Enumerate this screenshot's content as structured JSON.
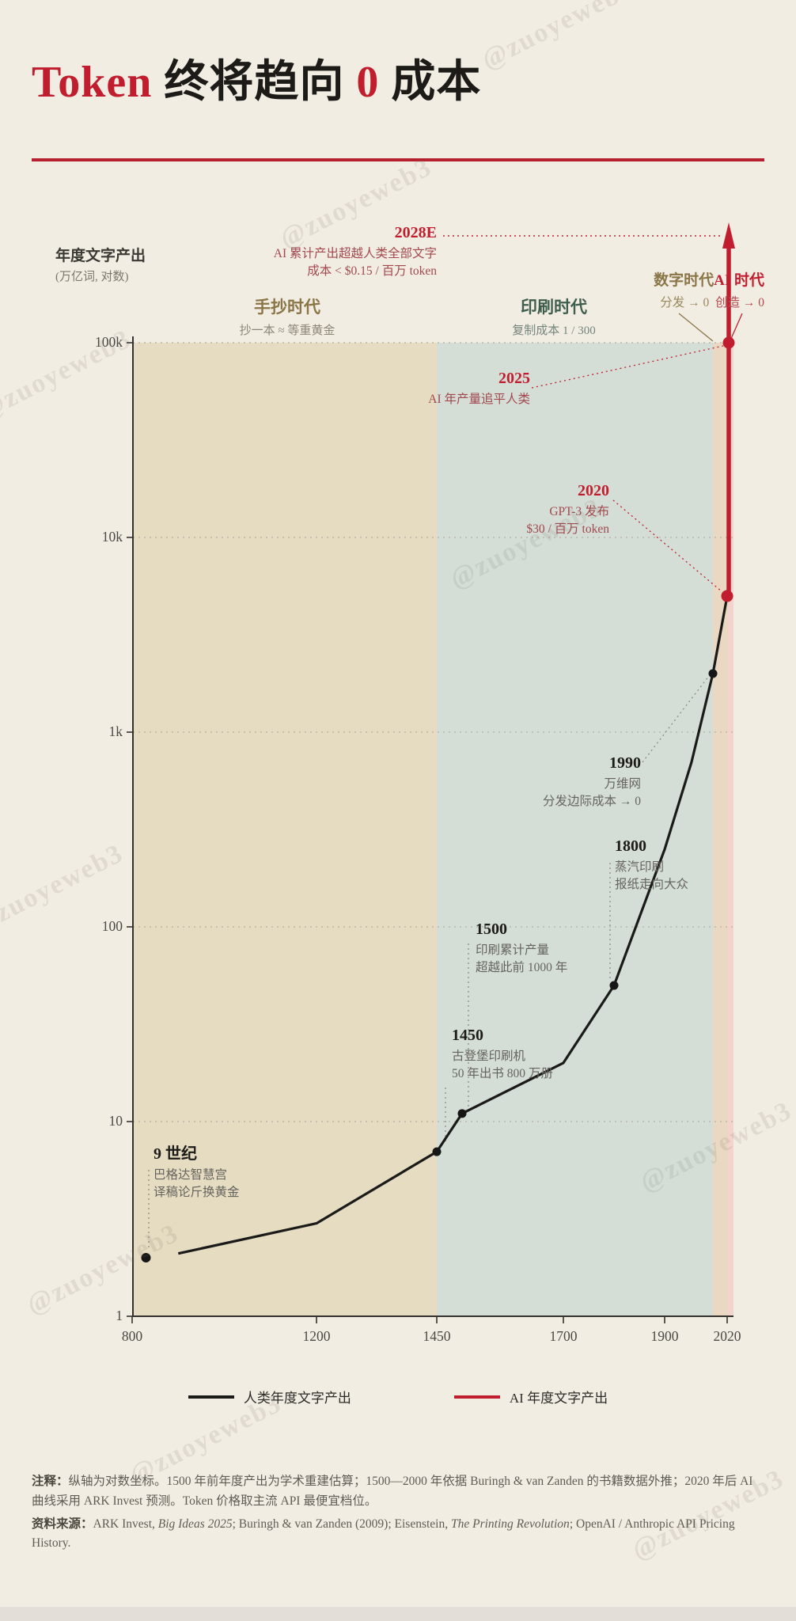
{
  "watermark": {
    "text": "@zuoyeweb3"
  },
  "title": {
    "t1": "Token",
    "t2": " 终将趋向 ",
    "t3": "0",
    "t4": " 成本"
  },
  "axis": {
    "y_title": "年度文字产出",
    "y_unit": "(万亿词, 对数)"
  },
  "eras": {
    "manuscript": {
      "name": "手抄时代",
      "sub": "抄一本 ≈ 等重黄金"
    },
    "print": {
      "name": "印刷时代",
      "sub": "复制成本 1 / 300"
    },
    "digital": {
      "name": "数字时代",
      "sub": "分发 → 0"
    },
    "ai": {
      "name": "AI 时代",
      "sub": "创造 → 0"
    }
  },
  "ann": {
    "a2028": {
      "year": "2028E",
      "line1": "AI 累计产出超越人类全部文字",
      "line2": "成本 < $0.15 / 百万 token"
    },
    "a2025": {
      "year": "2025",
      "line1": "AI 年产量追平人类"
    },
    "a2020": {
      "year": "2020",
      "line1": "GPT-3 发布",
      "line2": "$30 / 百万 token"
    },
    "a1990": {
      "year": "1990",
      "line1": "万维网",
      "line2": "分发边际成本 → 0"
    },
    "a1800": {
      "year": "1800",
      "line1": "蒸汽印刷",
      "line2": "报纸走向大众"
    },
    "a1500": {
      "year": "1500",
      "line1": "印刷累计产量",
      "line2": "超越此前 1000 年"
    },
    "a1450": {
      "year": "1450",
      "line1": "古登堡印刷机",
      "line2": "50 年出书 800 万册"
    },
    "a9c": {
      "year": "9 世纪",
      "line1": "巴格达智慧宫",
      "line2": "译稿论斤换黄金"
    }
  },
  "legend": {
    "human": {
      "label": "人类年度文字产出",
      "color": "#1a1a19"
    },
    "ai": {
      "label": "AI 年度文字产出",
      "color": "#c01e2e"
    }
  },
  "notes": {
    "note_label": "注释：",
    "note_text": "纵轴为对数坐标。1500 年前年度产出为学术重建估算；1500—2000 年依据 Buringh & van Zanden 的书籍数据外推；2020 年后 AI 曲线采用 ARK Invest 预测。Token 价格取主流 API 最便宜档位。",
    "source_label": "资料来源：",
    "source_segments": [
      {
        "text": "ARK Invest, ",
        "italic": false
      },
      {
        "text": "Big Ideas 2025",
        "italic": true
      },
      {
        "text": ";  Buringh & van Zanden (2009);  Eisenstein, ",
        "italic": false
      },
      {
        "text": "The Printing Revolution",
        "italic": true
      },
      {
        "text": ";  OpenAI / Anthropic API Pricing History.",
        "italic": false
      }
    ]
  },
  "colors": {
    "accent_red": "#c01e2e",
    "annotation_red": "#a2484e",
    "olive": "#8a7547",
    "green": "#3f5e4e",
    "band_manuscript": "#e6dcc2",
    "band_print": "#d4ded6",
    "band_digital": "#ead8c2",
    "band_ai": "#f3d3cc",
    "human_line": "#1a1a19",
    "grid": "#b5b0a3",
    "leader_grey": "#8f8c82"
  },
  "chart_data": {
    "type": "line",
    "title": "Token 终将趋向 0 成本",
    "y_axis": {
      "label": "年度文字产出 (万亿词)",
      "scale": "log",
      "ticks": [
        100000,
        10000,
        1000,
        100,
        10,
        1
      ],
      "tick_labels": [
        "100k",
        "10k",
        "1k",
        "100",
        "10",
        "1"
      ],
      "ylim": [
        1,
        100000
      ]
    },
    "x_axis": {
      "ticks": [
        800,
        1200,
        1450,
        1700,
        1900,
        2020
      ],
      "tick_labels": [
        "800",
        "1200",
        "1450",
        "1700",
        "1900",
        "2020"
      ],
      "xlim": [
        800,
        2035
      ]
    },
    "grid": "dotted horizontal per decade",
    "legend_position": "bottom-center",
    "series": [
      {
        "name": "人类年度文字产出",
        "color": "#1a1a19",
        "isolated_point": [
          830,
          2
        ],
        "points": [
          [
            900,
            2.1
          ],
          [
            1200,
            3
          ],
          [
            1450,
            7
          ],
          [
            1500,
            11
          ],
          [
            1700,
            20
          ],
          [
            1800,
            50
          ],
          [
            1900,
            250
          ],
          [
            1950,
            700
          ],
          [
            1990,
            2000
          ],
          [
            2020,
            5000
          ]
        ],
        "dots": [
          [
            1450,
            7
          ],
          [
            1500,
            11
          ],
          [
            1800,
            50
          ],
          [
            1990,
            2000
          ]
        ]
      },
      {
        "name": "AI 年度文字产出",
        "color": "#c01e2e",
        "points": [
          [
            2021,
            5000
          ],
          [
            2025,
            100000
          ]
        ],
        "dots": [
          [
            2021,
            5000
          ],
          [
            2025,
            100000
          ]
        ],
        "projection": "2028E 箭头超出坐标轴顶端"
      }
    ],
    "eras": [
      {
        "name": "手抄时代",
        "from": 800,
        "to": 1450
      },
      {
        "name": "印刷时代",
        "from": 1450,
        "to": 1990
      },
      {
        "name": "数字时代",
        "from": 1990,
        "to": 2022
      },
      {
        "name": "AI 时代",
        "from": 2022,
        "to": 2035
      }
    ],
    "milestones": [
      {
        "year": "9 世纪",
        "value": 2,
        "label": "巴格达智慧宫，译稿论斤换黄金"
      },
      {
        "year": "1450",
        "value": 7,
        "label": "古登堡印刷机，50 年出书 800 万册"
      },
      {
        "year": "1500",
        "value": 11,
        "label": "印刷累计产量超越此前 1000 年"
      },
      {
        "year": "1800",
        "value": 50,
        "label": "蒸汽印刷，报纸走向大众"
      },
      {
        "year": "1990",
        "value": 2000,
        "label": "万维网，分发边际成本 → 0"
      },
      {
        "year": "2020",
        "value": 5000,
        "label": "GPT-3 发布，$30 / 百万 token"
      },
      {
        "year": "2025",
        "value": 100000,
        "label": "AI 年产量追平人类"
      },
      {
        "year": "2028E",
        "value": null,
        "label": "AI 累计产出超越人类全部文字，成本 < $0.15 / 百万 token"
      }
    ]
  }
}
